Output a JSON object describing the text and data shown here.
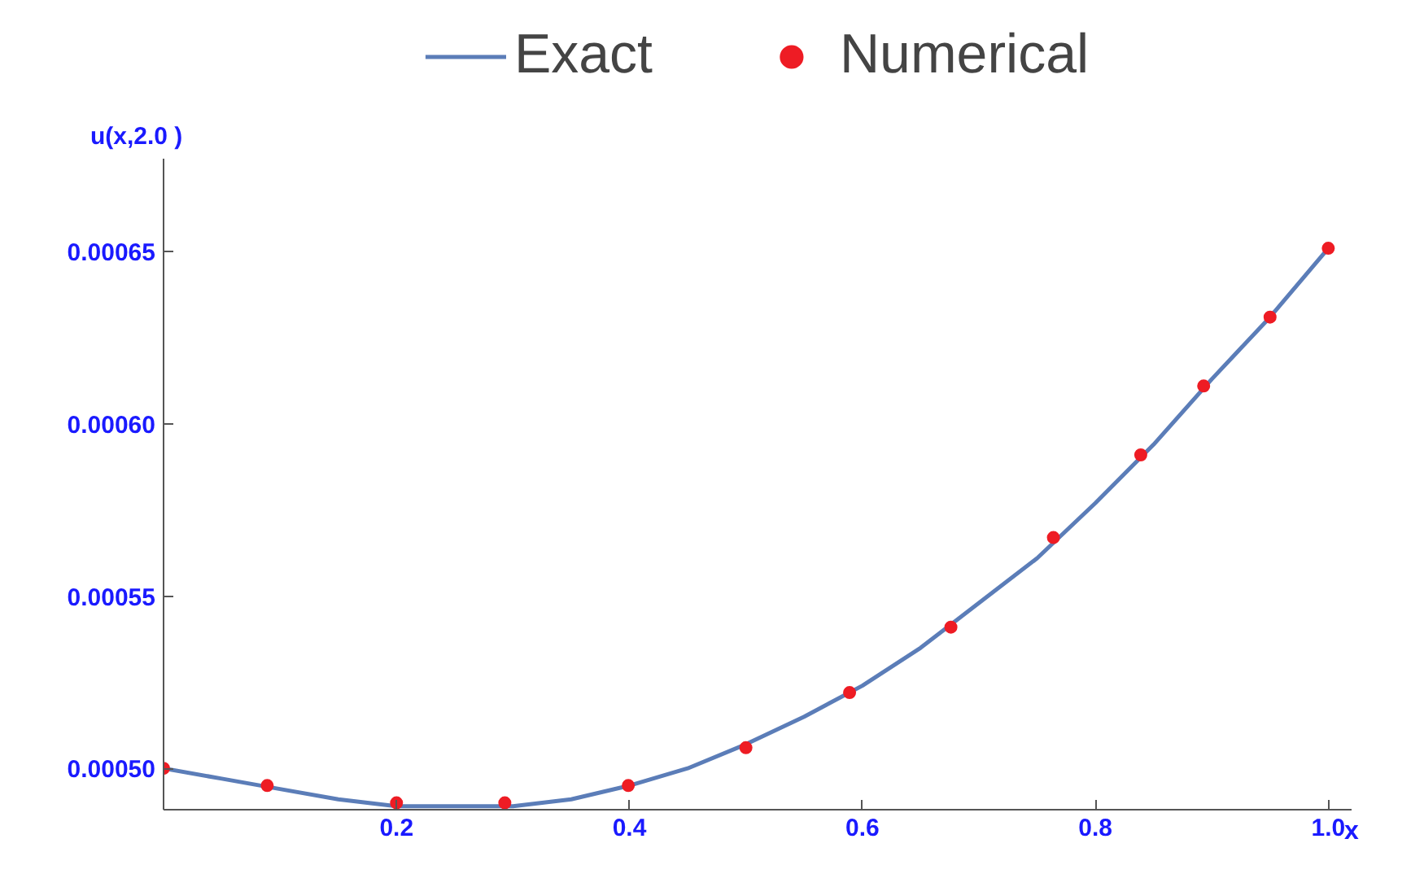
{
  "chart_data": {
    "type": "line",
    "xlabel": "x",
    "ylabel": "u(x,2.0 )",
    "xlim": [
      0,
      1.02
    ],
    "ylim": [
      0.000488,
      0.000677
    ],
    "xticks": [
      0.2,
      0.4,
      0.6,
      0.8,
      {
        "value": 1,
        "label": "1.0"
      }
    ],
    "yticks": [
      {
        "value": 0.0005,
        "label": "0.00050"
      },
      {
        "value": 0.00055,
        "label": "0.00055"
      },
      {
        "value": 0.0006,
        "label": "0.00060"
      },
      {
        "value": 0.00065,
        "label": "0.00065"
      }
    ],
    "grid": false,
    "legend": "top",
    "series": [
      {
        "name": "Exact",
        "color": "#5b7db8",
        "x": [
          0,
          0.05,
          0.1,
          0.15,
          0.2,
          0.25,
          0.3,
          0.35,
          0.4,
          0.45,
          0.5,
          0.55,
          0.6,
          0.65,
          0.7,
          0.75,
          0.8,
          0.85,
          0.9,
          0.95,
          1.0
        ],
        "values": [
          0.0005,
          0.000497,
          0.000494,
          0.000491,
          0.000489,
          0.000489,
          0.000489,
          0.000491,
          0.000495,
          0.0005,
          0.000507,
          0.000515,
          0.000524,
          0.000535,
          0.000548,
          0.000561,
          0.000577,
          0.000594,
          0.000613,
          0.000631,
          0.000651
        ]
      },
      {
        "name": "Numerical",
        "type": "scatter",
        "color": "#ee1c24",
        "marker": "circle",
        "x": [
          0,
          0.089,
          0.2,
          0.293,
          0.399,
          0.5,
          0.589,
          0.676,
          0.764,
          0.839,
          0.893,
          0.95,
          1.0
        ],
        "values": [
          0.0005,
          0.000495,
          0.00049,
          0.00049,
          0.000495,
          0.000506,
          0.000522,
          0.000541,
          0.000567,
          0.000591,
          0.000611,
          0.000631,
          0.000651
        ]
      }
    ]
  }
}
